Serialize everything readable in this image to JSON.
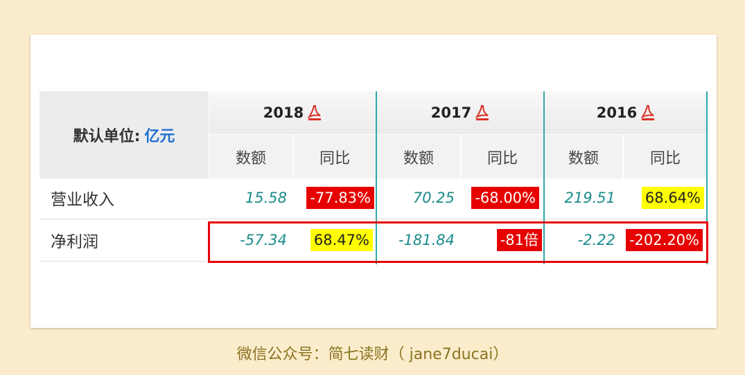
{
  "table": {
    "unit_label": "默认单位:",
    "unit_value": "亿元",
    "years": [
      "2018",
      "2017",
      "2016"
    ],
    "sub_headers": [
      "数额",
      "同比"
    ],
    "rows": [
      {
        "label": "营业收入",
        "cells": [
          {
            "value": "15.58",
            "change": "-77.83%",
            "badge": "red"
          },
          {
            "value": "70.25",
            "change": "-68.00%",
            "badge": "red"
          },
          {
            "value": "219.51",
            "change": "68.64%",
            "badge": "yellow"
          }
        ]
      },
      {
        "label": "净利润",
        "cells": [
          {
            "value": "-57.34",
            "change": "68.47%",
            "badge": "yellow"
          },
          {
            "value": "-181.84",
            "change": "-81倍",
            "badge": "red"
          },
          {
            "value": "-2.22",
            "change": "-202.20%",
            "badge": "red"
          }
        ]
      }
    ],
    "icon": "pdf-icon"
  },
  "colors": {
    "background": "#fbeccb",
    "teal_text": "#1a8a8a",
    "red_badge": "#e60000",
    "yellow_badge": "#ffff00",
    "unit_blue": "#1e6fd2",
    "footer_text": "#8a7320"
  },
  "footer": "微信公众号：简七读财（ jane7ducai）"
}
